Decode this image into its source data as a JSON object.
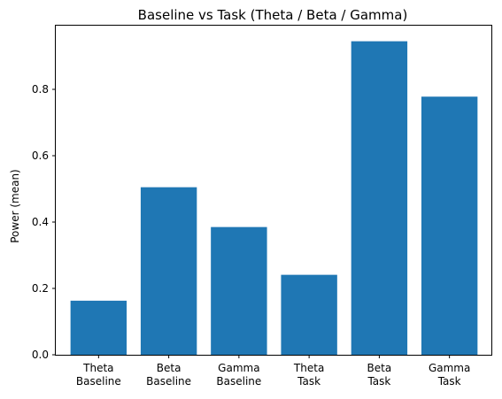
{
  "chart_data": {
    "type": "bar",
    "title": "Baseline vs Task (Theta / Beta / Gamma)",
    "xlabel": "",
    "ylabel": "Power (mean)",
    "categories": [
      "Theta\nBaseline",
      "Beta\nBaseline",
      "Gamma\nBaseline",
      "Theta\nTask",
      "Beta\nTask",
      "Gamma\nTask"
    ],
    "values": [
      0.163,
      0.505,
      0.385,
      0.241,
      0.945,
      0.778
    ],
    "ylim": [
      0,
      0.992
    ],
    "yticks": [
      0.0,
      0.2,
      0.4,
      0.6,
      0.8
    ],
    "ytick_labels": [
      "0.0",
      "0.2",
      "0.4",
      "0.6",
      "0.8"
    ],
    "bar_color": "#1f77b4",
    "grid": false,
    "legend": "none"
  }
}
